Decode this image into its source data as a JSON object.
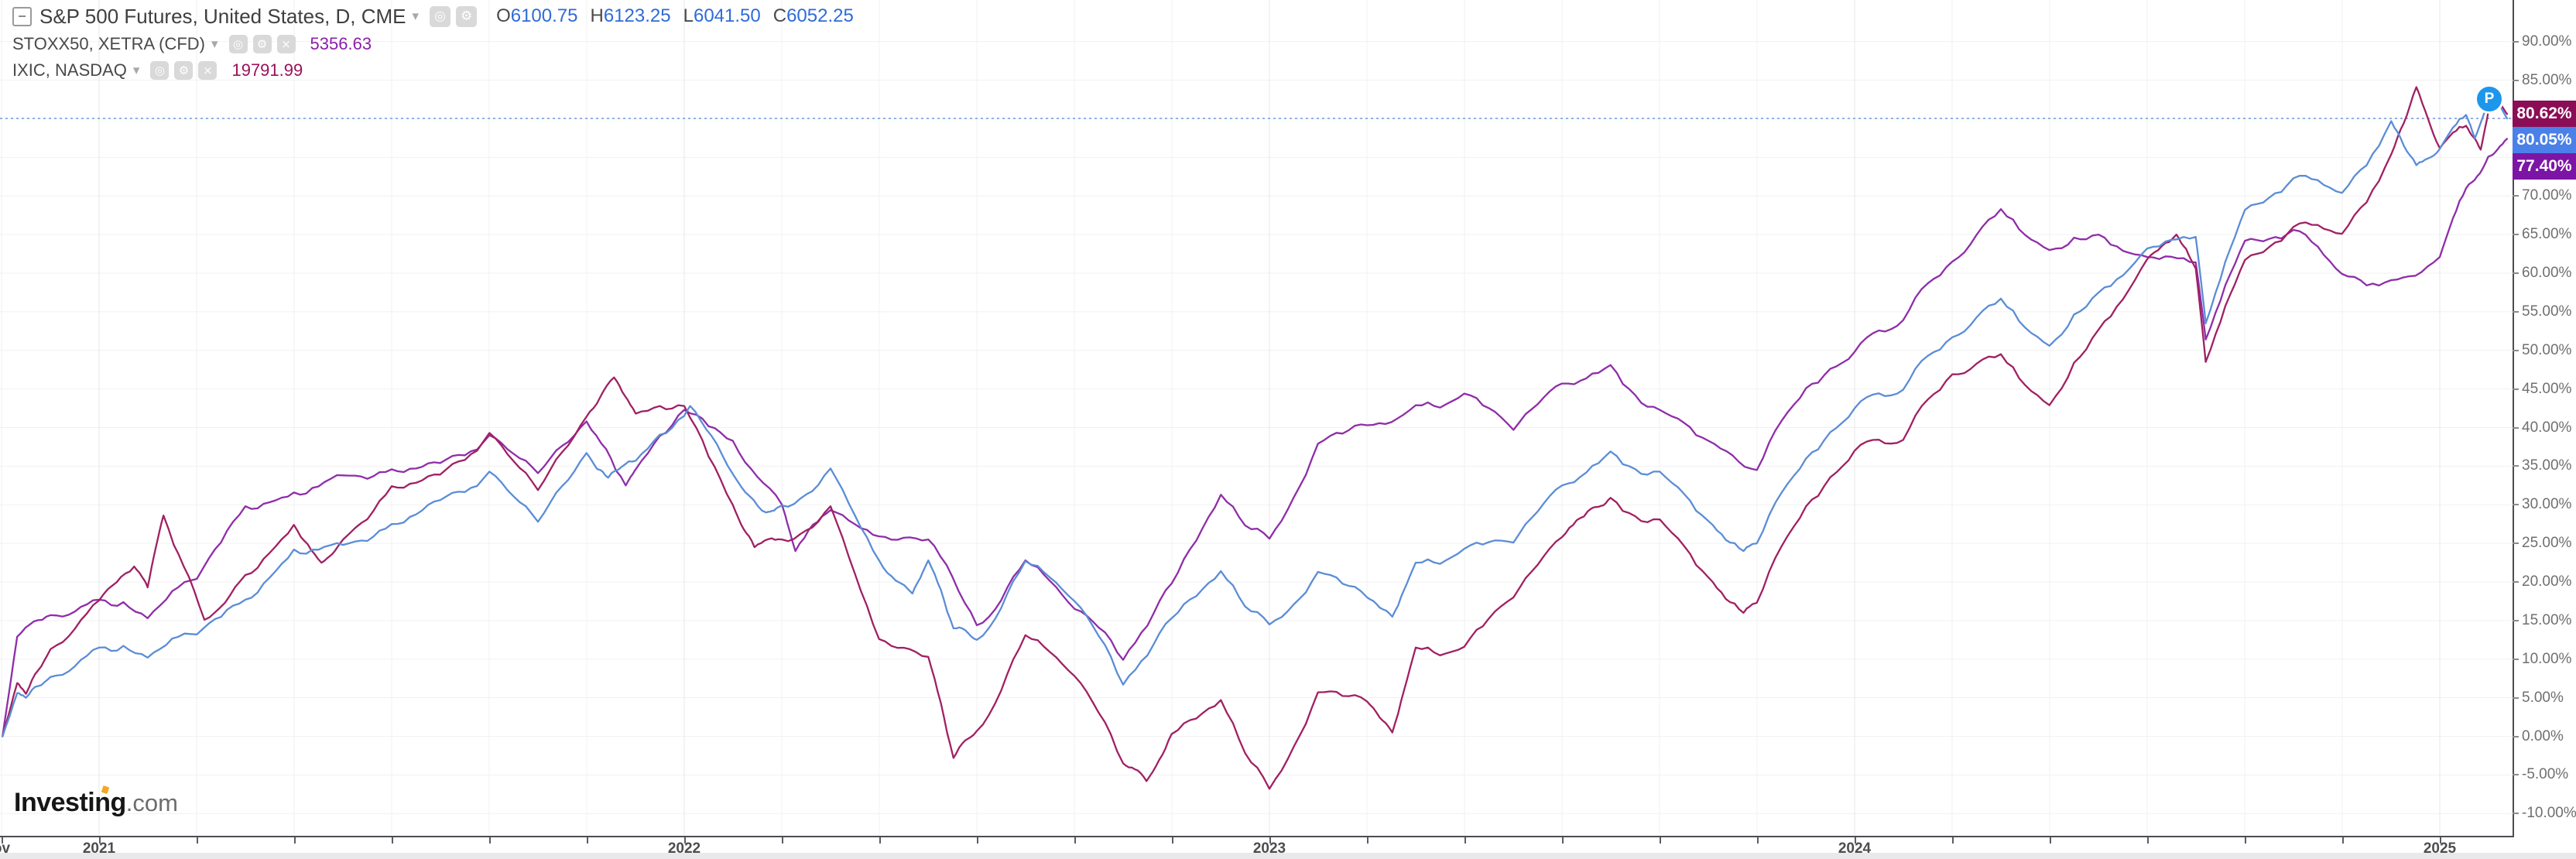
{
  "legend": {
    "main": {
      "title": "S&P 500 Futures, United States, D, CME",
      "ohlc": [
        {
          "k": "O",
          "v": "6100.75"
        },
        {
          "k": "H",
          "v": "6123.25"
        },
        {
          "k": "L",
          "v": "6041.50"
        },
        {
          "k": "C",
          "v": "6052.25"
        }
      ],
      "ohlc_value_color": "#2e6bd8"
    },
    "overlays": [
      {
        "title": "STOXX50, XETRA (CFD)",
        "value": "5356.63",
        "color": "#8b1fa8"
      },
      {
        "title": "IXIC, NASDAQ",
        "value": "19791.99",
        "color": "#9c1158"
      }
    ]
  },
  "icons": {
    "collapse": "−",
    "dropdown": "▾",
    "visibility": "◎",
    "settings": "⚙",
    "remove": "×",
    "last_bar_marker": "P"
  },
  "watermark": {
    "brand": "Investing",
    "suffix": ".com",
    "accent_color": "#f5a623"
  },
  "x_axis": {
    "edge_label": "ov",
    "year_labels": [
      "2021",
      "2022",
      "2023",
      "2024",
      "2025"
    ]
  },
  "chart_data": {
    "type": "line",
    "title": "S&P 500 Futures vs STOXX50 vs IXIC — percent change comparison",
    "x_unit": "decimal_year",
    "x_range": [
      2020.831,
      2025.12
    ],
    "y_unit": "percent_change",
    "ylim": [
      -12,
      95.5
    ],
    "grid": true,
    "y_ticks": [
      {
        "value": 90,
        "label": "90.00%"
      },
      {
        "value": 85,
        "label": "85.00%"
      },
      {
        "value": 80,
        "label": "80.00%"
      },
      {
        "value": 75,
        "label": "75.00%"
      },
      {
        "value": 70,
        "label": "70.00%"
      },
      {
        "value": 65,
        "label": "65.00%"
      },
      {
        "value": 60,
        "label": "60.00%"
      },
      {
        "value": 55,
        "label": "55.00%"
      },
      {
        "value": 50,
        "label": "50.00%"
      },
      {
        "value": 45,
        "label": "45.00%"
      },
      {
        "value": 40,
        "label": "40.00%"
      },
      {
        "value": 35,
        "label": "35.00%"
      },
      {
        "value": 30,
        "label": "30.00%"
      },
      {
        "value": 25,
        "label": "25.00%"
      },
      {
        "value": 20,
        "label": "20.00%"
      },
      {
        "value": 15,
        "label": "15.00%"
      },
      {
        "value": 10,
        "label": "10.00%"
      },
      {
        "value": 5,
        "label": "5.00%"
      },
      {
        "value": 0,
        "label": "0.00%"
      },
      {
        "value": -5,
        "label": "-5.00%"
      },
      {
        "value": -10,
        "label": "-10.00%"
      }
    ],
    "reference_line": {
      "value": 80.05,
      "color": "#6f9ce3",
      "style": "dotted"
    },
    "series": [
      {
        "name": "STOXX50, XETRA (CFD)",
        "color": "#8f2da8",
        "last_label": {
          "text": "77.40%",
          "value": 77.4,
          "bg": "#7c15a5"
        },
        "points": [
          [
            2020.835,
            0
          ],
          [
            2020.86,
            12.9
          ],
          [
            2020.917,
            15.7
          ],
          [
            2021.0,
            17.7
          ],
          [
            2021.083,
            15.3
          ],
          [
            2021.167,
            20.4
          ],
          [
            2021.25,
            29.8
          ],
          [
            2021.333,
            31.6
          ],
          [
            2021.417,
            33.8
          ],
          [
            2021.5,
            34.6
          ],
          [
            2021.583,
            35.4
          ],
          [
            2021.667,
            39.0
          ],
          [
            2021.75,
            34.1
          ],
          [
            2021.833,
            40.8
          ],
          [
            2021.9,
            32.5
          ],
          [
            2021.917,
            34.6
          ],
          [
            2022.0,
            42.3
          ],
          [
            2022.083,
            38.3
          ],
          [
            2022.167,
            30.0
          ],
          [
            2022.19,
            24.0
          ],
          [
            2022.25,
            29.3
          ],
          [
            2022.333,
            25.9
          ],
          [
            2022.417,
            25.5
          ],
          [
            2022.5,
            14.4
          ],
          [
            2022.583,
            22.8
          ],
          [
            2022.667,
            16.5
          ],
          [
            2022.75,
            9.9
          ],
          [
            2022.833,
            19.8
          ],
          [
            2022.917,
            31.3
          ],
          [
            2023.0,
            25.6
          ],
          [
            2023.083,
            37.9
          ],
          [
            2023.167,
            40.3
          ],
          [
            2023.25,
            42.9
          ],
          [
            2023.333,
            44.4
          ],
          [
            2023.417,
            39.7
          ],
          [
            2023.5,
            45.7
          ],
          [
            2023.583,
            48.1
          ],
          [
            2023.667,
            42.3
          ],
          [
            2023.75,
            38.3
          ],
          [
            2023.833,
            34.5
          ],
          [
            2023.917,
            45.1
          ],
          [
            2024.0,
            49.8
          ],
          [
            2024.083,
            53.9
          ],
          [
            2024.167,
            61.5
          ],
          [
            2024.25,
            68.3
          ],
          [
            2024.333,
            63.0
          ],
          [
            2024.417,
            65.0
          ],
          [
            2024.5,
            62.1
          ],
          [
            2024.583,
            61.4
          ],
          [
            2024.6,
            51.4
          ],
          [
            2024.667,
            64.2
          ],
          [
            2024.75,
            65.6
          ],
          [
            2024.833,
            59.9
          ],
          [
            2024.917,
            59.1
          ],
          [
            2025.0,
            62.1
          ],
          [
            2025.045,
            71.0
          ],
          [
            2025.083,
            75.1
          ],
          [
            2025.115,
            77.4
          ]
        ]
      },
      {
        "name": "IXIC, NASDAQ",
        "color": "#a02062",
        "last_label": {
          "text": "80.62%",
          "value": 80.62,
          "bg": "#8b0d56"
        },
        "points": [
          [
            2020.835,
            0
          ],
          [
            2020.86,
            6.9
          ],
          [
            2020.875,
            5.5
          ],
          [
            2020.917,
            11.3
          ],
          [
            2021.0,
            17.6
          ],
          [
            2021.06,
            22.0
          ],
          [
            2021.083,
            19.3
          ],
          [
            2021.11,
            28.6
          ],
          [
            2021.18,
            15.1
          ],
          [
            2021.25,
            20.9
          ],
          [
            2021.333,
            27.4
          ],
          [
            2021.38,
            22.5
          ],
          [
            2021.417,
            25.5
          ],
          [
            2021.5,
            32.4
          ],
          [
            2021.583,
            33.9
          ],
          [
            2021.667,
            39.3
          ],
          [
            2021.75,
            31.9
          ],
          [
            2021.833,
            41.4
          ],
          [
            2021.88,
            46.5
          ],
          [
            2021.917,
            41.8
          ],
          [
            2022.0,
            42.8
          ],
          [
            2022.083,
            30.0
          ],
          [
            2022.12,
            24.5
          ],
          [
            2022.167,
            25.5
          ],
          [
            2022.25,
            29.8
          ],
          [
            2022.333,
            12.6
          ],
          [
            2022.417,
            10.3
          ],
          [
            2022.46,
            -2.8
          ],
          [
            2022.5,
            0.7
          ],
          [
            2022.583,
            13.1
          ],
          [
            2022.667,
            7.8
          ],
          [
            2022.75,
            -3.5
          ],
          [
            2022.79,
            -5.8
          ],
          [
            2022.833,
            0.3
          ],
          [
            2022.917,
            4.7
          ],
          [
            2023.0,
            -6.8
          ],
          [
            2023.083,
            5.7
          ],
          [
            2023.167,
            4.5
          ],
          [
            2023.21,
            0.5
          ],
          [
            2023.25,
            11.5
          ],
          [
            2023.333,
            11.6
          ],
          [
            2023.417,
            18.0
          ],
          [
            2023.5,
            25.8
          ],
          [
            2023.55,
            29.5
          ],
          [
            2023.583,
            30.9
          ],
          [
            2023.667,
            28.1
          ],
          [
            2023.75,
            20.6
          ],
          [
            2023.81,
            16.0
          ],
          [
            2023.833,
            17.3
          ],
          [
            2023.917,
            29.8
          ],
          [
            2024.0,
            37.0
          ],
          [
            2024.083,
            38.4
          ],
          [
            2024.167,
            46.9
          ],
          [
            2024.25,
            49.5
          ],
          [
            2024.333,
            42.9
          ],
          [
            2024.417,
            52.7
          ],
          [
            2024.5,
            61.8
          ],
          [
            2024.55,
            65.0
          ],
          [
            2024.583,
            60.6
          ],
          [
            2024.6,
            48.5
          ],
          [
            2024.667,
            61.7
          ],
          [
            2024.75,
            66.0
          ],
          [
            2024.833,
            65.1
          ],
          [
            2024.917,
            75.4
          ],
          [
            2024.96,
            84.1
          ],
          [
            2025.0,
            76.2
          ],
          [
            2025.045,
            79.1
          ],
          [
            2025.07,
            76.0
          ],
          [
            2025.09,
            83.5
          ],
          [
            2025.115,
            80.62
          ]
        ]
      },
      {
        "name": "S&P 500 Futures",
        "color": "#5b8dd6",
        "last_label": {
          "text": "80.05%",
          "value": 80.05,
          "bg": "#4a80e8"
        },
        "points": [
          [
            2020.835,
            0
          ],
          [
            2020.86,
            5.6
          ],
          [
            2020.875,
            5.0
          ],
          [
            2020.917,
            7.7
          ],
          [
            2021.0,
            11.5
          ],
          [
            2021.083,
            10.2
          ],
          [
            2021.167,
            13.2
          ],
          [
            2021.25,
            17.7
          ],
          [
            2021.333,
            24.2
          ],
          [
            2021.417,
            24.8
          ],
          [
            2021.5,
            27.5
          ],
          [
            2021.583,
            30.6
          ],
          [
            2021.667,
            34.3
          ],
          [
            2021.75,
            27.8
          ],
          [
            2021.833,
            36.7
          ],
          [
            2021.87,
            33.5
          ],
          [
            2021.917,
            35.7
          ],
          [
            2022.0,
            41.5
          ],
          [
            2022.01,
            42.8
          ],
          [
            2022.083,
            34.0
          ],
          [
            2022.14,
            29.0
          ],
          [
            2022.167,
            29.9
          ],
          [
            2022.25,
            34.7
          ],
          [
            2022.333,
            22.8
          ],
          [
            2022.39,
            18.5
          ],
          [
            2022.417,
            22.8
          ],
          [
            2022.46,
            14.0
          ],
          [
            2022.5,
            12.5
          ],
          [
            2022.583,
            22.7
          ],
          [
            2022.667,
            17.5
          ],
          [
            2022.75,
            6.7
          ],
          [
            2022.833,
            15.3
          ],
          [
            2022.917,
            21.4
          ],
          [
            2023.0,
            14.5
          ],
          [
            2023.083,
            21.3
          ],
          [
            2023.167,
            18.0
          ],
          [
            2023.21,
            15.5
          ],
          [
            2023.25,
            22.5
          ],
          [
            2023.333,
            24.3
          ],
          [
            2023.417,
            25.1
          ],
          [
            2023.5,
            32.5
          ],
          [
            2023.583,
            36.9
          ],
          [
            2023.667,
            34.3
          ],
          [
            2023.75,
            27.9
          ],
          [
            2023.81,
            24.0
          ],
          [
            2023.833,
            25.0
          ],
          [
            2023.917,
            36.0
          ],
          [
            2024.0,
            42.5
          ],
          [
            2024.083,
            44.9
          ],
          [
            2024.167,
            51.7
          ],
          [
            2024.25,
            56.7
          ],
          [
            2024.333,
            50.6
          ],
          [
            2024.417,
            57.5
          ],
          [
            2024.5,
            63.2
          ],
          [
            2024.583,
            64.7
          ],
          [
            2024.6,
            53.5
          ],
          [
            2024.667,
            68.2
          ],
          [
            2024.75,
            72.3
          ],
          [
            2024.833,
            70.4
          ],
          [
            2024.917,
            79.7
          ],
          [
            2024.96,
            74.0
          ],
          [
            2025.0,
            76.1
          ],
          [
            2025.045,
            80.5
          ],
          [
            2025.06,
            77.5
          ],
          [
            2025.09,
            83.4
          ],
          [
            2025.115,
            80.05
          ]
        ]
      }
    ]
  }
}
